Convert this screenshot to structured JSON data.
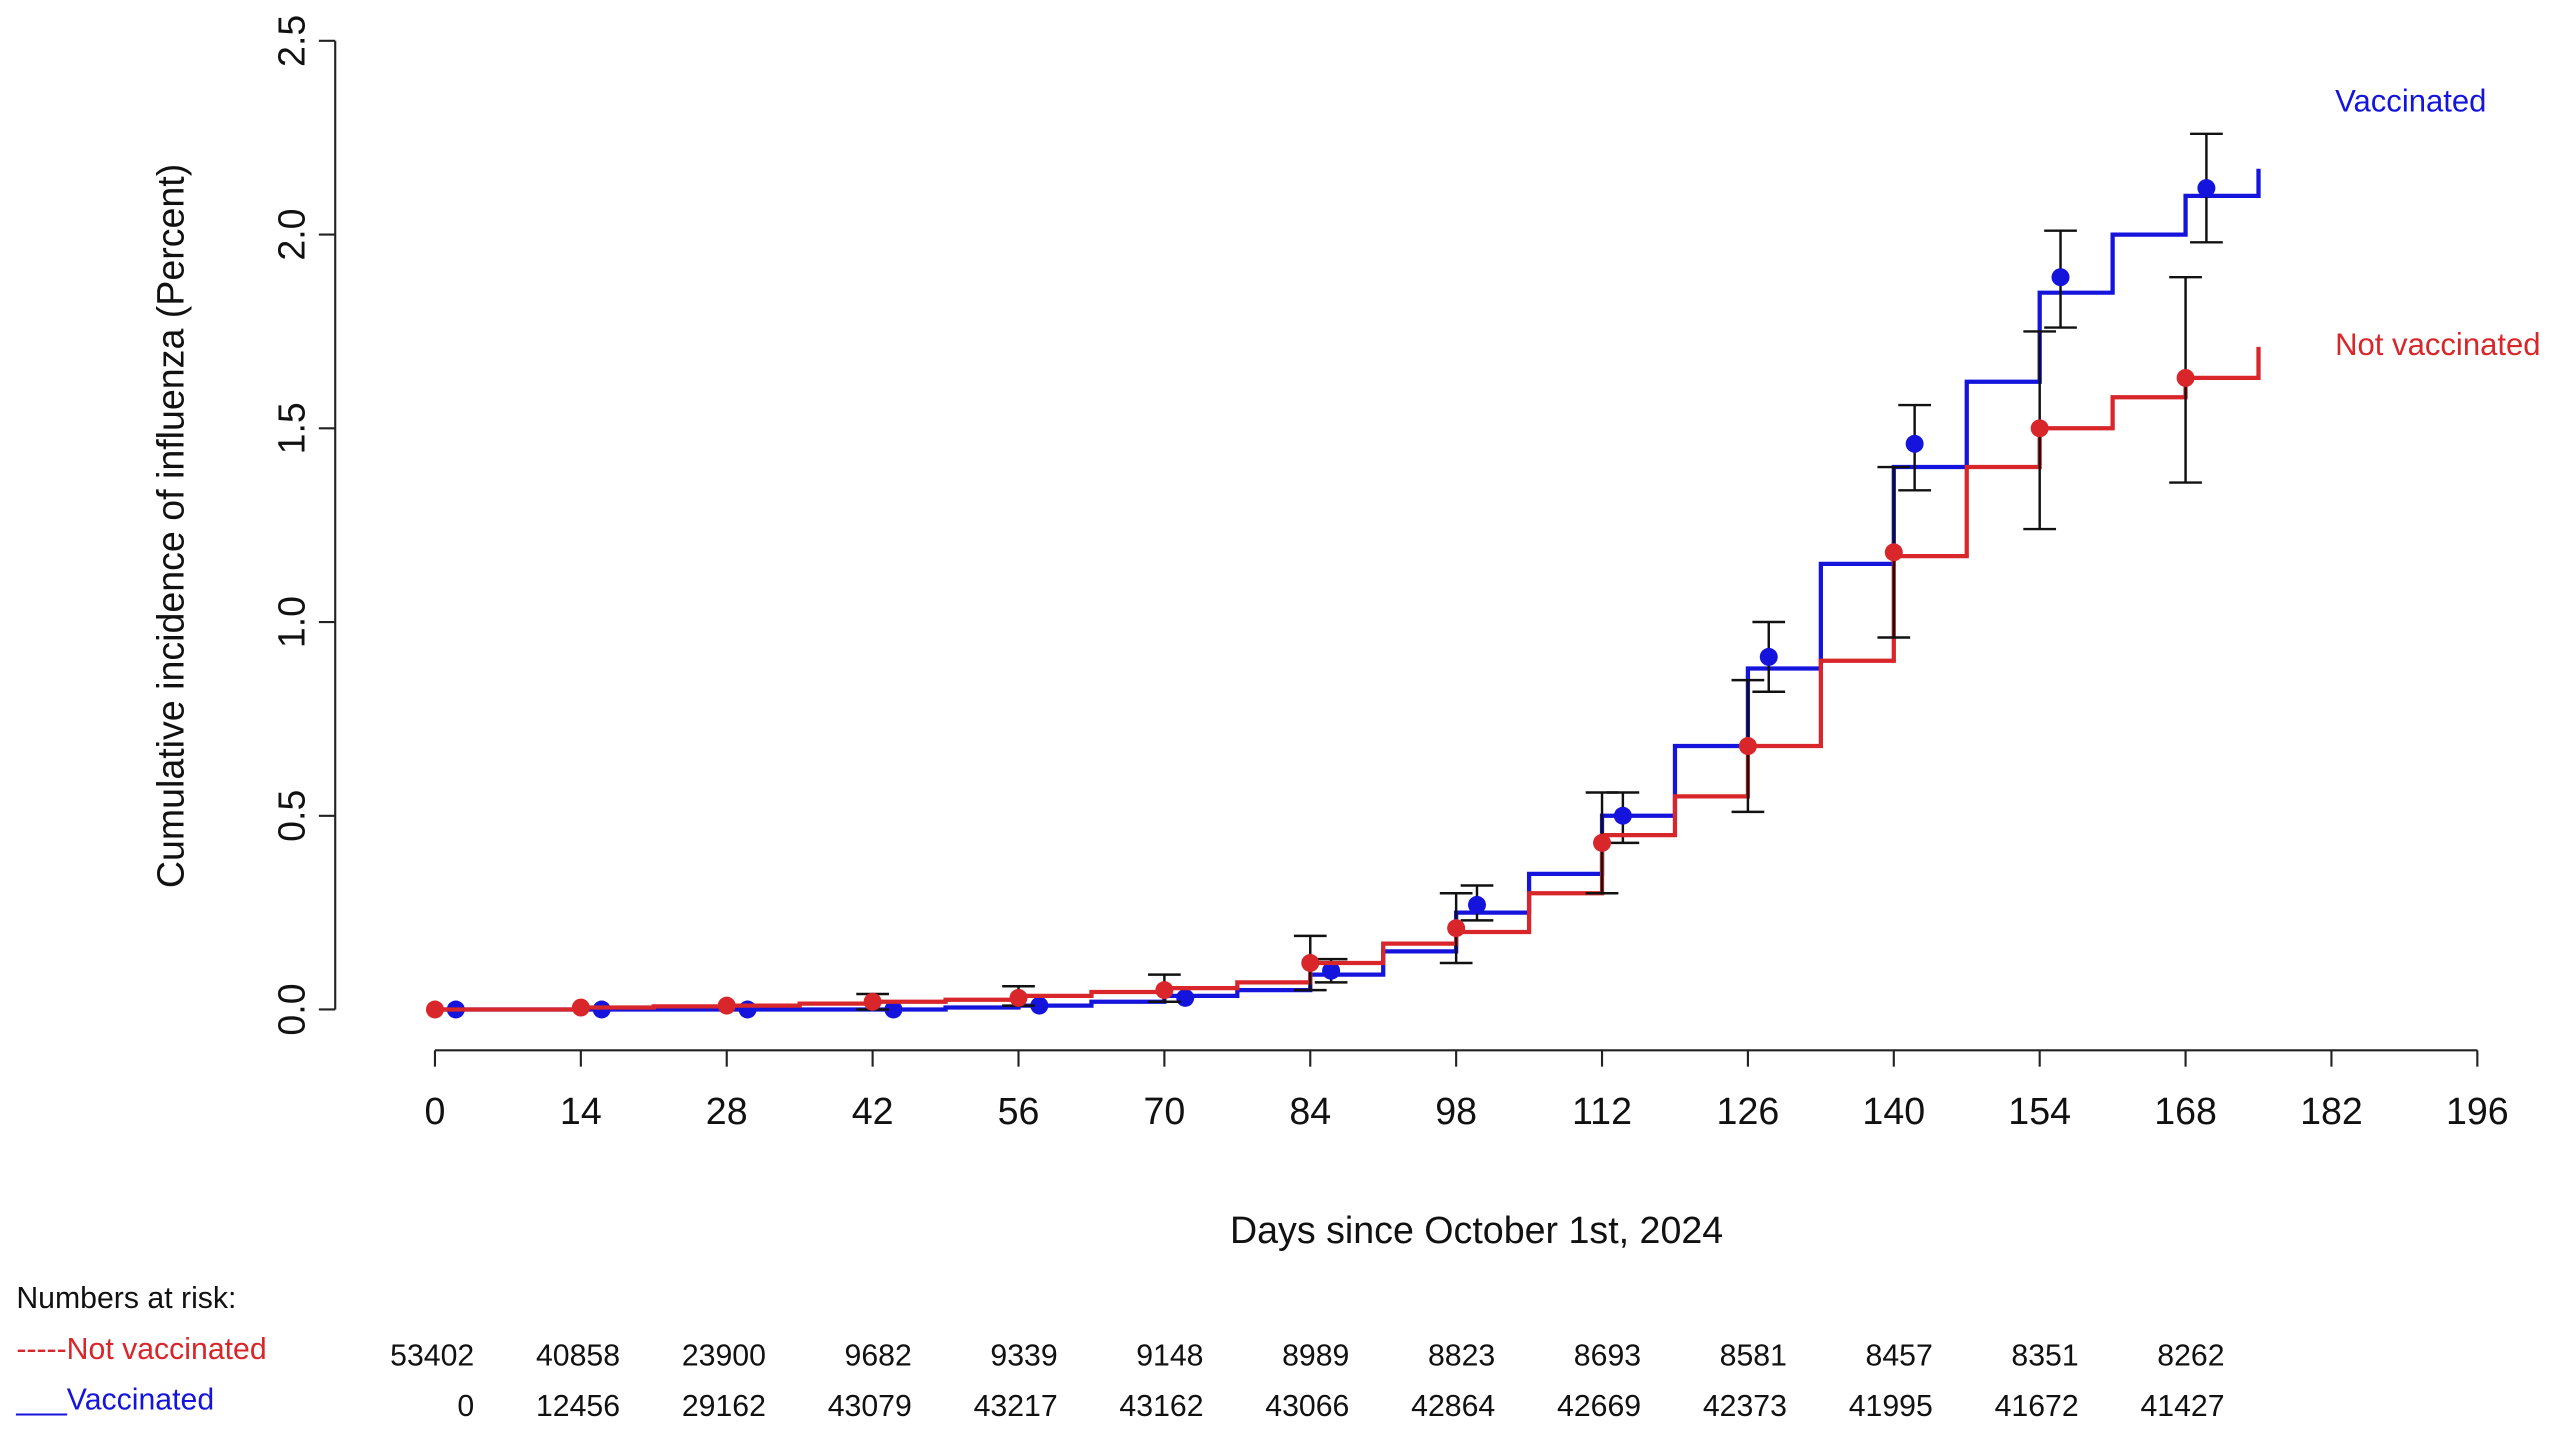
{
  "chart_data": {
    "type": "step",
    "y_label": "Cumulative incidence of influenza (Percent)",
    "x_label": "Days since October 1st, 2024",
    "xlim": [
      0,
      196
    ],
    "xticks": [
      0,
      14,
      28,
      42,
      56,
      70,
      84,
      98,
      112,
      126,
      140,
      154,
      168,
      182,
      196
    ],
    "ylim": [
      0,
      2.5
    ],
    "yticks": [
      {
        "value": 0,
        "label": "0.0"
      },
      0.5,
      {
        "value": 1,
        "label": "1.0"
      },
      1.5,
      {
        "value": 2,
        "label": "2.0"
      },
      2.5
    ],
    "series": [
      {
        "name": "Vaccinated",
        "color": "#1414dc",
        "x": [
          0,
          7,
          14,
          21,
          28,
          35,
          42,
          49,
          56,
          63,
          70,
          77,
          84,
          91,
          98,
          105,
          112,
          119,
          126,
          133,
          140,
          147,
          154,
          161,
          168,
          175
        ],
        "values": [
          0,
          0,
          0,
          0,
          0,
          0,
          0,
          0.005,
          0.01,
          0.02,
          0.035,
          0.05,
          0.09,
          0.15,
          0.25,
          0.35,
          0.5,
          0.68,
          0.88,
          1.15,
          1.4,
          1.62,
          1.85,
          2.0,
          2.1,
          2.17
        ],
        "points": {
          "x": [
            2,
            16,
            30,
            44,
            58,
            72,
            86,
            100,
            114,
            128,
            142,
            156,
            170
          ],
          "values": [
            0,
            0,
            0,
            0,
            0.01,
            0.03,
            0.1,
            0.27,
            0.5,
            0.91,
            1.46,
            1.89,
            2.12
          ],
          "lower": [
            null,
            null,
            null,
            null,
            null,
            null,
            0.07,
            0.23,
            0.43,
            0.82,
            1.34,
            1.76,
            1.98
          ],
          "upper": [
            null,
            null,
            null,
            null,
            null,
            null,
            0.13,
            0.32,
            0.56,
            1.0,
            1.56,
            2.01,
            2.26
          ]
        }
      },
      {
        "name": "Not vaccinated",
        "color": "#d8262a",
        "x": [
          0,
          7,
          14,
          21,
          28,
          35,
          42,
          49,
          56,
          63,
          70,
          77,
          84,
          91,
          98,
          105,
          112,
          119,
          126,
          133,
          140,
          147,
          154,
          161,
          168,
          175
        ],
        "values": [
          0,
          0,
          0.005,
          0.008,
          0.01,
          0.015,
          0.02,
          0.025,
          0.035,
          0.045,
          0.055,
          0.07,
          0.12,
          0.17,
          0.2,
          0.3,
          0.45,
          0.55,
          0.68,
          0.9,
          1.17,
          1.4,
          1.5,
          1.58,
          1.63,
          1.71
        ],
        "points": {
          "x": [
            0,
            14,
            28,
            42,
            56,
            70,
            84,
            98,
            112,
            126,
            140,
            154,
            168
          ],
          "values": [
            0,
            0.005,
            0.01,
            0.02,
            0.03,
            0.05,
            0.12,
            0.21,
            0.43,
            0.68,
            1.18,
            1.5,
            1.63
          ],
          "lower": [
            null,
            null,
            null,
            0,
            0.01,
            0.02,
            0.05,
            0.12,
            0.3,
            0.51,
            0.96,
            1.24,
            1.36
          ],
          "upper": [
            null,
            null,
            null,
            0.04,
            0.06,
            0.09,
            0.19,
            0.3,
            0.56,
            0.85,
            1.4,
            1.75,
            1.89
          ]
        }
      }
    ],
    "risk_table": {
      "title": "Numbers at risk:",
      "rows": [
        {
          "label": "-----Not vaccinated",
          "color": "#d8262a",
          "values": [
            53402,
            40858,
            23900,
            9682,
            9339,
            9148,
            8989,
            8823,
            8693,
            8581,
            8457,
            8351,
            8262
          ]
        },
        {
          "label": "___Vaccinated",
          "color": "#1414dc",
          "values": [
            0,
            12456,
            29162,
            43079,
            43217,
            43162,
            43066,
            42864,
            42669,
            42373,
            41995,
            41672,
            41427
          ]
        }
      ]
    }
  }
}
